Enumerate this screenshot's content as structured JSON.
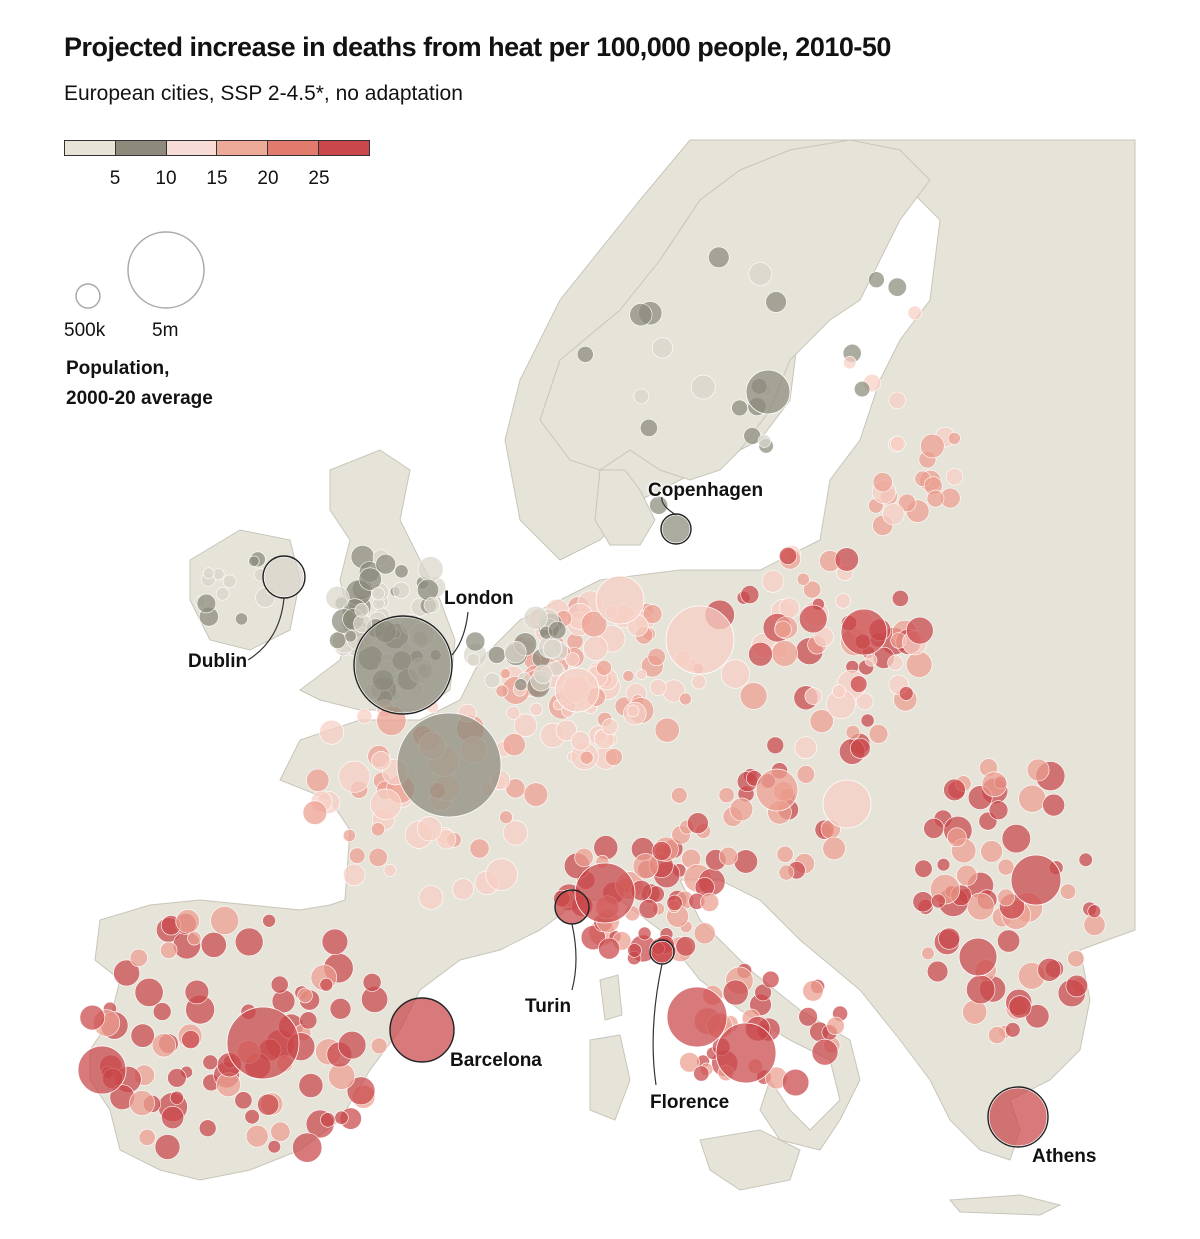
{
  "title": "Projected increase in deaths from heat per 100,000 people, 2010-50",
  "subtitle": "European cities, SSP 2-4.5*, no adaptation",
  "legend": {
    "color_scale": {
      "bins": [
        {
          "color": "#e6e3d9"
        },
        {
          "color": "#8c8b7b"
        },
        {
          "color": "#f6dcd4"
        },
        {
          "color": "#eeaa99"
        },
        {
          "color": "#e07b6d"
        },
        {
          "color": "#c9474a"
        }
      ],
      "tick_labels": [
        "5",
        "10",
        "15",
        "20",
        "25"
      ]
    },
    "size_scale": {
      "items": [
        {
          "label": "500k",
          "population": 500000
        },
        {
          "label": "5m",
          "population": 5000000
        }
      ],
      "caption_line1": "Population,",
      "caption_line2": "2000-20 average"
    }
  },
  "colors": {
    "land": "#e6e3d9",
    "sea": "#ffffff",
    "border": "#c8c5b9",
    "grey": "#8c8b7b",
    "light_grey": "#d9d6cb",
    "pink": "#f6cfc4",
    "salmon": "#ec9e8f",
    "red": "#c9474a"
  },
  "labels": {
    "london": "London",
    "dublin": "Dublin",
    "copenhagen": "Copenhagen",
    "barcelona": "Barcelona",
    "turin": "Turin",
    "florence": "Florence",
    "athens": "Athens"
  }
}
